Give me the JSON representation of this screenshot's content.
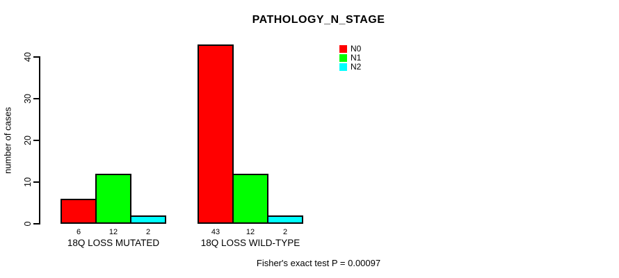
{
  "chart_data": {
    "type": "bar",
    "title": "PATHOLOGY_N_STAGE",
    "xlabel": "",
    "ylabel": "number of cases",
    "categories": [
      "18Q LOSS MUTATED",
      "18Q LOSS WILD-TYPE"
    ],
    "series": [
      {
        "name": "N0",
        "color": "#ff0000",
        "values": [
          6,
          43
        ]
      },
      {
        "name": "N1",
        "color": "#00ff00",
        "values": [
          12,
          12
        ]
      },
      {
        "name": "N2",
        "color": "#00ffff",
        "values": [
          2,
          2
        ]
      }
    ],
    "bar_value_labels": [
      [
        "6",
        "12",
        "2"
      ],
      [
        "43",
        "12",
        "2"
      ]
    ],
    "yticks": [
      "0",
      "10",
      "20",
      "30",
      "40"
    ],
    "ylim": [
      0,
      43
    ],
    "grid": false,
    "legend_position": "top-right",
    "bar_border_color": "#000000",
    "background_color": "#ffffff",
    "annotation": "Fisher's exact test P = 0.00097"
  }
}
